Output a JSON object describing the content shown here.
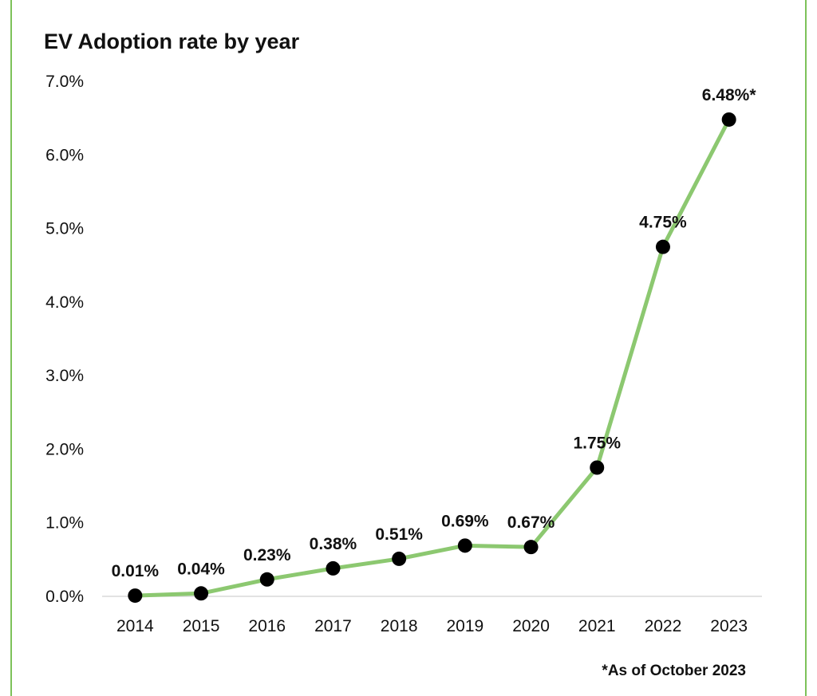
{
  "chart_data": {
    "type": "line",
    "title": "EV Adoption rate by year",
    "xlabel": "",
    "ylabel": "",
    "categories": [
      "2014",
      "2015",
      "2016",
      "2017",
      "2018",
      "2019",
      "2020",
      "2021",
      "2022",
      "2023"
    ],
    "series": [
      {
        "values": [
          0.01,
          0.04,
          0.23,
          0.38,
          0.51,
          0.69,
          0.67,
          1.75,
          4.75,
          6.48
        ]
      }
    ],
    "data_labels": [
      "0.01%",
      "0.04%",
      "0.23%",
      "0.38%",
      "0.51%",
      "0.69%",
      "0.67%",
      "1.75%",
      "4.75%",
      "6.48%*"
    ],
    "ylim": [
      0,
      7
    ],
    "yticks": [
      "0.0%",
      "1.0%",
      "2.0%",
      "3.0%",
      "4.0%",
      "5.0%",
      "6.0%",
      "7.0%"
    ],
    "grid": false,
    "legend": "none",
    "footnote": "*As of October 2023",
    "colors": {
      "line": "#8cc870",
      "marker": "#000000",
      "frame": "#7dc25a",
      "axis": "#d9d9d9"
    }
  }
}
